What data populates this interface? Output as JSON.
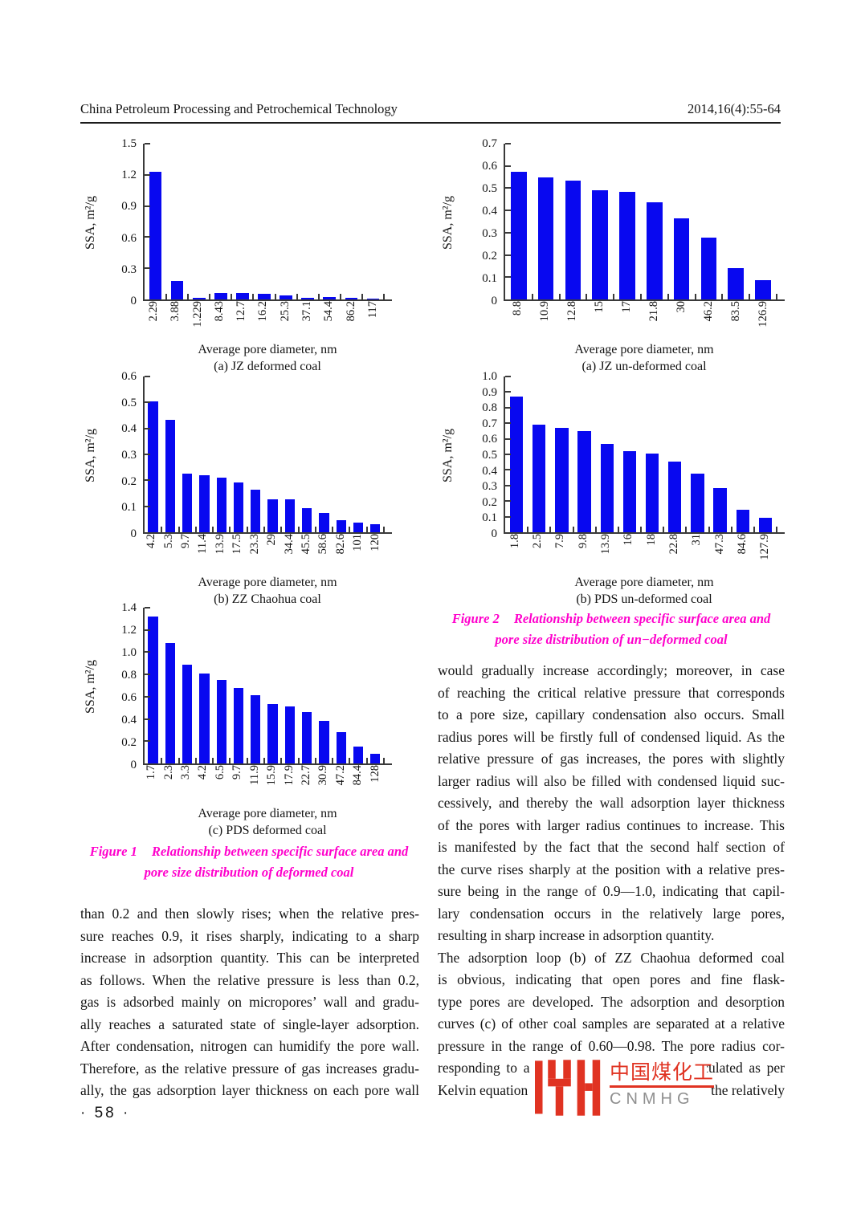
{
  "header": {
    "journal": "China Petroleum Processing and Petrochemical Technology",
    "citation": "2014,16(4):55-64"
  },
  "page_number": "· 58 ·",
  "colors": {
    "bar": "#0808f0",
    "axis": "#3a3a3a",
    "caption": "#ff00cc",
    "logo_red": "#e03322",
    "logo_gray": "#8f8f8f",
    "ink": "#141414"
  },
  "chart_data": [
    {
      "type": "bar",
      "title": "(a) JZ deformed coal",
      "xlabel": "Average pore diameter, nm",
      "ylabel": "SSA, m²/g",
      "categories": [
        "2.29",
        "3.88",
        "1.229",
        "8.43",
        "12.7",
        "16.2",
        "25.3",
        "37.1",
        "54.4",
        "86.2",
        "117"
      ],
      "values": [
        1.23,
        0.175,
        0.012,
        0.065,
        0.065,
        0.052,
        0.04,
        0.015,
        0.026,
        0.013,
        0.004
      ],
      "ylim": [
        0,
        1.5
      ],
      "y_ticks": [
        "0",
        "0.3",
        "0.6",
        "0.9",
        "1.2",
        "1.5"
      ],
      "grid": false,
      "legend": "none"
    },
    {
      "type": "bar",
      "title": "(b) ZZ Chaohua coal",
      "xlabel": "Average pore diameter, nm",
      "ylabel": "SSA, m²/g",
      "categories": [
        "4.2",
        "5.3",
        "9.7",
        "11.4",
        "13.9",
        "17.5",
        "23.3",
        "29",
        "34.4",
        "45.5",
        "58.6",
        "82.6",
        "101",
        "120"
      ],
      "values": [
        0.505,
        0.432,
        0.227,
        0.221,
        0.21,
        0.193,
        0.165,
        0.127,
        0.127,
        0.094,
        0.073,
        0.047,
        0.037,
        0.031
      ],
      "ylim": [
        0,
        0.6
      ],
      "y_ticks": [
        "0",
        "0.1",
        "0.2",
        "0.3",
        "0.4",
        "0.5",
        "0.6"
      ],
      "grid": false,
      "legend": "none"
    },
    {
      "type": "bar",
      "title": "(c) PDS deformed coal",
      "xlabel": "Average pore diameter, nm",
      "ylabel": "SSA, m²/g",
      "categories": [
        "1.7",
        "2.3",
        "3.3",
        "4.2",
        "6.5",
        "9.7",
        "11.9",
        "15.9",
        "17.9",
        "22.7",
        "30.9",
        "47.2",
        "84.4",
        "128"
      ],
      "values": [
        1.32,
        1.085,
        0.885,
        0.81,
        0.75,
        0.675,
        0.61,
        0.535,
        0.51,
        0.46,
        0.385,
        0.285,
        0.15,
        0.088
      ],
      "ylim": [
        0,
        1.4
      ],
      "y_ticks": [
        "0",
        "0.2",
        "0.4",
        "0.6",
        "0.8",
        "1.0",
        "1.2",
        "1.4"
      ],
      "grid": false,
      "legend": "none"
    },
    {
      "type": "bar",
      "title": "(a) JZ un-deformed coal",
      "xlabel": "Average pore diameter, nm",
      "ylabel": "SSA, m²/g",
      "categories": [
        "8.8",
        "10.9",
        "12.8",
        "15",
        "17",
        "21.8",
        "30",
        "46.2",
        "83.5",
        "126.9"
      ],
      "values": [
        0.575,
        0.55,
        0.533,
        0.492,
        0.485,
        0.438,
        0.365,
        0.277,
        0.14,
        0.085
      ],
      "ylim": [
        0,
        0.7
      ],
      "y_ticks": [
        "0",
        "0.1",
        "0.2",
        "0.3",
        "0.4",
        "0.5",
        "0.6",
        "0.7"
      ],
      "grid": false,
      "legend": "none"
    },
    {
      "type": "bar",
      "title": "(b) PDS un-deformed coal",
      "xlabel": "Average pore diameter, nm",
      "ylabel": "SSA, m²/g",
      "categories": [
        "1.8",
        "2.5",
        "7.9",
        "9.8",
        "13.9",
        "16",
        "18",
        "22.8",
        "31",
        "47.3",
        "84.6",
        "127.9"
      ],
      "values": [
        0.87,
        0.69,
        0.67,
        0.65,
        0.568,
        0.522,
        0.507,
        0.452,
        0.378,
        0.285,
        0.143,
        0.092
      ],
      "ylim": [
        0,
        1.0
      ],
      "y_ticks": [
        "0",
        "0.1",
        "0.2",
        "0.3",
        "0.4",
        "0.5",
        "0.6",
        "0.7",
        "0.8",
        "0.9",
        "1.0"
      ],
      "grid": false,
      "legend": "none"
    }
  ],
  "figure1_caption": {
    "label": "Figure 1",
    "line1": "Relationship between specific surface area and",
    "line2": "pore size distribution of deformed coal"
  },
  "figure2_caption": {
    "label": "Figure 2",
    "line1": "Relationship between specific surface area and",
    "line2": "pore size distribution of un−deformed coal"
  },
  "left_col": {
    "paragraph_lines": [
      "than 0.2 and then slowly rises; when the relative pres-",
      "sure reaches 0.9, it rises sharply, indicating to a sharp",
      "increase in adsorption quantity. This can be interpreted",
      "as follows. When the relative pressure is less than 0.2,",
      "gas is adsorbed mainly on micropores’ wall and gradu-",
      "ally reaches a saturated state of single-layer adsorption.",
      "After condensation, nitrogen can humidify the pore wall.",
      "Therefore, as the relative pressure of gas increases gradu-",
      "ally, the gas adsorption layer thickness on each pore wall"
    ]
  },
  "right_col": {
    "paragraph1_lines": [
      "would gradually increase accordingly; moreover, in case",
      "of reaching the critical relative pressure that corresponds",
      "to a pore size, capillary condensation also occurs. Small",
      "radius pores will be firstly full of condensed liquid. As the",
      "relative pressure of gas increases, the pores with slightly",
      "larger radius will also be filled with condensed liquid suc-",
      "cessively, and thereby the wall adsorption layer thickness",
      "of the pores with larger radius continues to increase. This",
      "is manifested by the fact that the second half section of",
      "the curve rises sharply at the position with a relative pres-",
      "sure being in the range of 0.9—1.0, indicating that capil-",
      "lary condensation occurs in the relatively large pores,",
      "resulting in sharp increase in adsorption quantity."
    ],
    "paragraph2_lines": [
      "The adsorption loop (b) of ZZ Chaohua deformed coal",
      "is obvious, indicating that open pores and fine flask-",
      "type pores are developed. The adsorption and desorption",
      "curves (c) of other coal samples are separated at a relative",
      "pressure in the range of 0.60—0.98. The pore radius cor-",
      "responding to a relative pressure of 0.60 calculated as per"
    ],
    "kelvin_line": {
      "left": "Kelvin equation",
      "right": "the relatively"
    }
  },
  "logo": {
    "cn": "中国煤化工",
    "latin": "CNMHG"
  }
}
